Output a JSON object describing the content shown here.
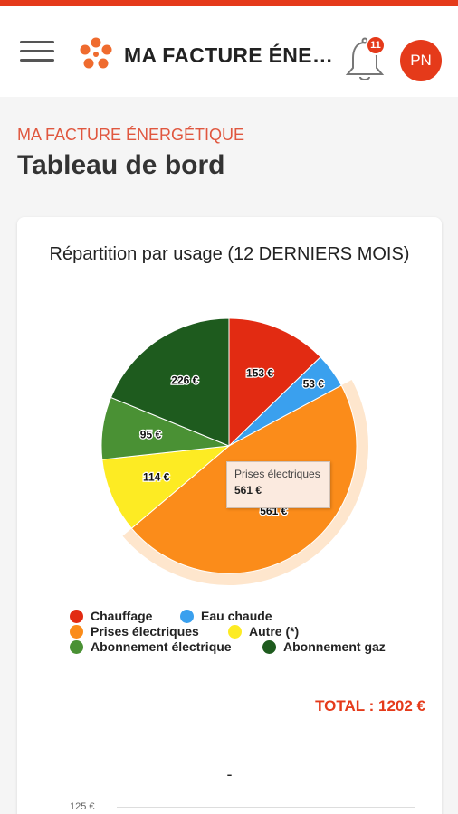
{
  "header": {
    "app_title": "MA FACTURE ÉNERGÉTIQUE",
    "notifications_count": "11",
    "avatar_initials": "PN",
    "accent_color": "#e53a1a",
    "icons": {
      "menu": "hamburger-menu-icon",
      "logo": "flower-logo-icon",
      "bell": "bell-icon"
    }
  },
  "page": {
    "subtitle": "MA FACTURE ÉNERGÉTIQUE",
    "title": "Tableau de bord"
  },
  "chart_data": {
    "type": "pie",
    "title": "Répartition par usage (12 DERNIERS MOIS)",
    "categories": [
      "Chauffage",
      "Eau chaude",
      "Prises électriques",
      "Autre (*)",
      "Abonnement électrique",
      "Abonnement gaz"
    ],
    "values": [
      153,
      53,
      561,
      114,
      95,
      226
    ],
    "labels": [
      "153 €",
      "53 €",
      "561 €",
      "114 €",
      "95 €",
      "226 €"
    ],
    "colors": [
      "#e22b12",
      "#3aa0ee",
      "#fb8c1a",
      "#fdeb23",
      "#4a9134",
      "#1e5b1e"
    ],
    "highlighted": "Prises électriques",
    "legend_position": "bottom"
  },
  "tooltip": {
    "label": "Prises électriques",
    "value": "561 €"
  },
  "total": "TOTAL : 1202 €",
  "second_chart": {
    "title": "-",
    "y_tick": "125 €"
  }
}
